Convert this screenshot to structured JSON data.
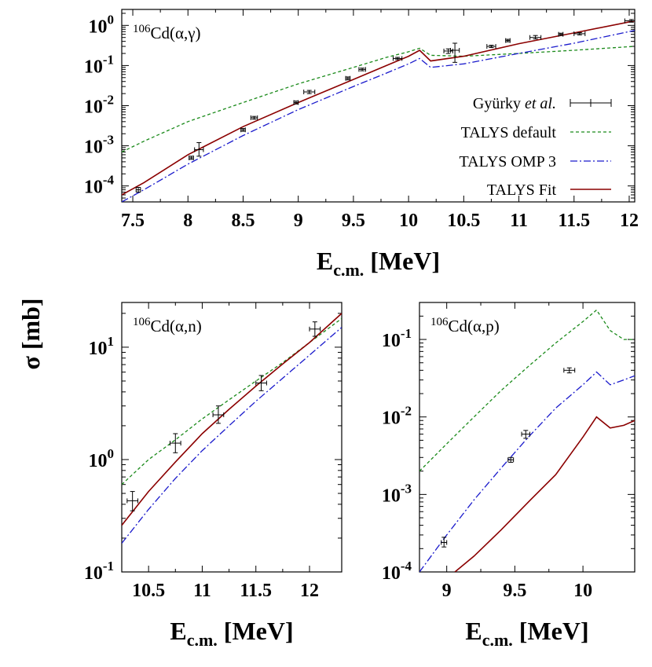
{
  "figure": {
    "y_axis_label": "σ [mb]"
  },
  "chart_data": [
    {
      "type": "line",
      "id": "alpha-gamma",
      "title": "106Cd(α,γ)",
      "title_parts": {
        "mass": "106",
        "reaction": "Cd(α,γ)"
      },
      "xlabel": "E",
      "xlabel_sub": "c.m.",
      "xlabel_unit": " [MeV]",
      "ylabel": "σ [mb]",
      "xlim": [
        7.4,
        12.05
      ],
      "ylim": [
        4e-05,
        2.5
      ],
      "yscale": "log",
      "xticks": [
        7.5,
        8,
        8.5,
        9,
        9.5,
        10,
        10.5,
        11,
        11.5,
        12
      ],
      "xtick_labels": [
        "7.5",
        "8",
        "8.5",
        "9",
        "9.5",
        "10",
        "10.5",
        "11",
        "11.5",
        "12"
      ],
      "yticks": [
        0.0001,
        0.001,
        0.01,
        0.1,
        1
      ],
      "ytick_labels": [
        {
          "base": "10",
          "exp": "-4"
        },
        {
          "base": "10",
          "exp": "-3"
        },
        {
          "base": "10",
          "exp": "-2"
        },
        {
          "base": "10",
          "exp": "-1"
        },
        {
          "base": "10",
          "exp": "0"
        }
      ],
      "legend": {
        "placement": "right-middle",
        "entries": [
          {
            "label_pre": "Gyürky ",
            "label_italic": "et al.",
            "label_post": "",
            "kind": "points"
          },
          {
            "label_pre": "TALYS default",
            "label_italic": "",
            "label_post": "",
            "kind": "line",
            "series": "TALYS default"
          },
          {
            "label_pre": "TALYS OMP 3",
            "label_italic": "",
            "label_post": "",
            "kind": "line",
            "series": "TALYS OMP 3"
          },
          {
            "label_pre": "TALYS Fit",
            "label_italic": "",
            "label_post": "",
            "kind": "line",
            "series": "TALYS Fit"
          }
        ]
      },
      "points": [
        {
          "x": 7.55,
          "y": 8e-05,
          "xerr": 0.02,
          "ylo": 7e-05,
          "yhi": 9.2e-05
        },
        {
          "x": 8.03,
          "y": 0.0005,
          "xerr": 0.02,
          "ylo": 0.00046,
          "yhi": 0.00055
        },
        {
          "x": 8.1,
          "y": 0.0008,
          "xerr": 0.04,
          "ylo": 0.00055,
          "yhi": 0.0012
        },
        {
          "x": 8.5,
          "y": 0.0025,
          "xerr": 0.02,
          "ylo": 0.0023,
          "yhi": 0.0027
        },
        {
          "x": 8.6,
          "y": 0.005,
          "xerr": 0.03,
          "ylo": 0.0046,
          "yhi": 0.0054
        },
        {
          "x": 8.98,
          "y": 0.012,
          "xerr": 0.02,
          "ylo": 0.011,
          "yhi": 0.013
        },
        {
          "x": 9.1,
          "y": 0.022,
          "xerr": 0.05,
          "ylo": 0.02,
          "yhi": 0.024
        },
        {
          "x": 9.45,
          "y": 0.048,
          "xerr": 0.02,
          "ylo": 0.044,
          "yhi": 0.052
        },
        {
          "x": 9.58,
          "y": 0.08,
          "xerr": 0.03,
          "ylo": 0.074,
          "yhi": 0.086
        },
        {
          "x": 9.9,
          "y": 0.15,
          "xerr": 0.04,
          "ylo": 0.14,
          "yhi": 0.16
        },
        {
          "x": 10.36,
          "y": 0.23,
          "xerr": 0.04,
          "ylo": 0.2,
          "yhi": 0.26
        },
        {
          "x": 10.42,
          "y": 0.24,
          "xerr": 0.04,
          "ylo": 0.12,
          "yhi": 0.36
        },
        {
          "x": 10.75,
          "y": 0.3,
          "xerr": 0.04,
          "ylo": 0.28,
          "yhi": 0.32
        },
        {
          "x": 10.9,
          "y": 0.42,
          "xerr": 0.02,
          "ylo": 0.39,
          "yhi": 0.45
        },
        {
          "x": 11.15,
          "y": 0.5,
          "xerr": 0.05,
          "ylo": 0.46,
          "yhi": 0.56
        },
        {
          "x": 11.38,
          "y": 0.6,
          "xerr": 0.02,
          "ylo": 0.56,
          "yhi": 0.64
        },
        {
          "x": 11.55,
          "y": 0.62,
          "xerr": 0.05,
          "ylo": 0.58,
          "yhi": 0.66
        },
        {
          "x": 12.02,
          "y": 1.3,
          "xerr": 0.06,
          "ylo": 1.2,
          "yhi": 1.4
        }
      ],
      "series": [
        {
          "name": "TALYS default",
          "color": "#1a8a1a",
          "dash": "4,3",
          "x": [
            7.4,
            7.6,
            8.0,
            8.5,
            9.0,
            9.5,
            9.8,
            10.0,
            10.1,
            10.2,
            10.5,
            11.0,
            11.5,
            12.05
          ],
          "y": [
            0.0007,
            0.0013,
            0.004,
            0.012,
            0.035,
            0.09,
            0.16,
            0.22,
            0.27,
            0.18,
            0.17,
            0.2,
            0.24,
            0.3
          ]
        },
        {
          "name": "TALYS OMP 3",
          "color": "#1a1acc",
          "dash": "9,3,2,3",
          "x": [
            7.4,
            7.6,
            8.0,
            8.5,
            9.0,
            9.5,
            9.8,
            10.0,
            10.1,
            10.2,
            10.5,
            11.0,
            11.5,
            12.05
          ],
          "y": [
            4e-05,
            8e-05,
            0.00035,
            0.0018,
            0.008,
            0.03,
            0.065,
            0.11,
            0.15,
            0.09,
            0.11,
            0.2,
            0.36,
            0.75
          ]
        },
        {
          "name": "TALYS Fit",
          "color": "#8b0000",
          "dash": "",
          "x": [
            7.4,
            7.6,
            8.0,
            8.5,
            9.0,
            9.5,
            9.8,
            10.0,
            10.1,
            10.2,
            10.5,
            11.0,
            11.5,
            12.05
          ],
          "y": [
            6e-05,
            0.00012,
            0.0006,
            0.003,
            0.012,
            0.045,
            0.1,
            0.17,
            0.24,
            0.13,
            0.17,
            0.35,
            0.65,
            1.3
          ]
        }
      ]
    },
    {
      "type": "line",
      "id": "alpha-n",
      "title": "106Cd(α,n)",
      "title_parts": {
        "mass": "106",
        "reaction": "Cd(α,n)"
      },
      "xlabel": "E",
      "xlabel_sub": "c.m.",
      "xlabel_unit": " [MeV]",
      "xlim": [
        10.25,
        12.3
      ],
      "ylim": [
        0.1,
        25
      ],
      "yscale": "log",
      "xticks": [
        10.5,
        11,
        11.5,
        12
      ],
      "xtick_labels": [
        "10.5",
        "11",
        "11.5",
        "12"
      ],
      "yticks": [
        0.1,
        1,
        10
      ],
      "ytick_labels": [
        {
          "base": "10",
          "exp": "-1"
        },
        {
          "base": "10",
          "exp": "0"
        },
        {
          "base": "10",
          "exp": "1"
        }
      ],
      "points": [
        {
          "x": 10.35,
          "y": 0.43,
          "xerr": 0.05,
          "ylo": 0.35,
          "yhi": 0.52
        },
        {
          "x": 10.75,
          "y": 1.4,
          "xerr": 0.05,
          "ylo": 1.15,
          "yhi": 1.7
        },
        {
          "x": 11.15,
          "y": 2.5,
          "xerr": 0.05,
          "ylo": 2.1,
          "yhi": 3.0
        },
        {
          "x": 11.55,
          "y": 4.8,
          "xerr": 0.05,
          "ylo": 4.1,
          "yhi": 5.6
        },
        {
          "x": 12.05,
          "y": 14.5,
          "xerr": 0.05,
          "ylo": 12.5,
          "yhi": 16.8
        }
      ],
      "series": [
        {
          "name": "TALYS default",
          "color": "#1a8a1a",
          "dash": "4,3",
          "x": [
            10.25,
            10.5,
            10.75,
            11.0,
            11.25,
            11.5,
            11.75,
            12.0,
            12.3
          ],
          "y": [
            0.6,
            1.0,
            1.5,
            2.3,
            3.4,
            5.0,
            7.3,
            11.0,
            18.0
          ]
        },
        {
          "name": "TALYS OMP 3",
          "color": "#1a1acc",
          "dash": "9,3,2,3",
          "x": [
            10.25,
            10.5,
            10.75,
            11.0,
            11.25,
            11.5,
            11.75,
            12.0,
            12.3
          ],
          "y": [
            0.18,
            0.36,
            0.68,
            1.2,
            2.0,
            3.3,
            5.3,
            8.5,
            15.0
          ]
        },
        {
          "name": "TALYS Fit",
          "color": "#8b0000",
          "dash": "",
          "x": [
            10.25,
            10.5,
            10.75,
            11.0,
            11.25,
            11.5,
            11.75,
            12.0,
            12.3
          ],
          "y": [
            0.26,
            0.52,
            0.95,
            1.7,
            2.8,
            4.5,
            7.1,
            11.0,
            20.0
          ]
        }
      ]
    },
    {
      "type": "line",
      "id": "alpha-p",
      "title": "106Cd(α,p)",
      "title_parts": {
        "mass": "106",
        "reaction": "Cd(α,p)"
      },
      "xlabel": "E",
      "xlabel_sub": "c.m.",
      "xlabel_unit": " [MeV]",
      "xlim": [
        8.8,
        10.38
      ],
      "ylim": [
        0.0001,
        0.3
      ],
      "yscale": "log",
      "xticks": [
        9,
        9.5,
        10
      ],
      "xtick_labels": [
        "9",
        "9.5",
        "10"
      ],
      "yticks": [
        0.0001,
        0.001,
        0.01,
        0.1
      ],
      "ytick_labels": [
        {
          "base": "10",
          "exp": "-4"
        },
        {
          "base": "10",
          "exp": "-3"
        },
        {
          "base": "10",
          "exp": "-2"
        },
        {
          "base": "10",
          "exp": "-1"
        }
      ],
      "points": [
        {
          "x": 8.98,
          "y": 0.00024,
          "xerr": 0.02,
          "ylo": 0.00021,
          "yhi": 0.00028
        },
        {
          "x": 9.47,
          "y": 0.0028,
          "xerr": 0.02,
          "ylo": 0.0026,
          "yhi": 0.003
        },
        {
          "x": 9.58,
          "y": 0.006,
          "xerr": 0.03,
          "ylo": 0.0053,
          "yhi": 0.0067
        },
        {
          "x": 9.9,
          "y": 0.04,
          "xerr": 0.04,
          "ylo": 0.037,
          "yhi": 0.043
        }
      ],
      "series": [
        {
          "name": "TALYS default",
          "color": "#1a8a1a",
          "dash": "4,3",
          "x": [
            8.8,
            9.0,
            9.2,
            9.4,
            9.6,
            9.8,
            10.0,
            10.1,
            10.2,
            10.3,
            10.38
          ],
          "y": [
            0.002,
            0.0045,
            0.01,
            0.022,
            0.045,
            0.09,
            0.17,
            0.24,
            0.13,
            0.1,
            0.1
          ]
        },
        {
          "name": "TALYS OMP 3",
          "color": "#1a1acc",
          "dash": "9,3,2,3",
          "x": [
            8.8,
            9.0,
            9.2,
            9.4,
            9.6,
            9.8,
            10.0,
            10.1,
            10.2,
            10.3,
            10.38
          ],
          "y": [
            0.0001,
            0.0003,
            0.00085,
            0.0022,
            0.0055,
            0.013,
            0.026,
            0.038,
            0.026,
            0.03,
            0.034
          ]
        },
        {
          "name": "TALYS Fit",
          "color": "#8b0000",
          "dash": "",
          "x": [
            9.06,
            9.2,
            9.4,
            9.6,
            9.8,
            10.0,
            10.1,
            10.2,
            10.3,
            10.38
          ],
          "y": [
            0.0001,
            0.00016,
            0.00035,
            0.0008,
            0.0018,
            0.0055,
            0.01,
            0.0072,
            0.0078,
            0.009
          ]
        }
      ]
    }
  ]
}
